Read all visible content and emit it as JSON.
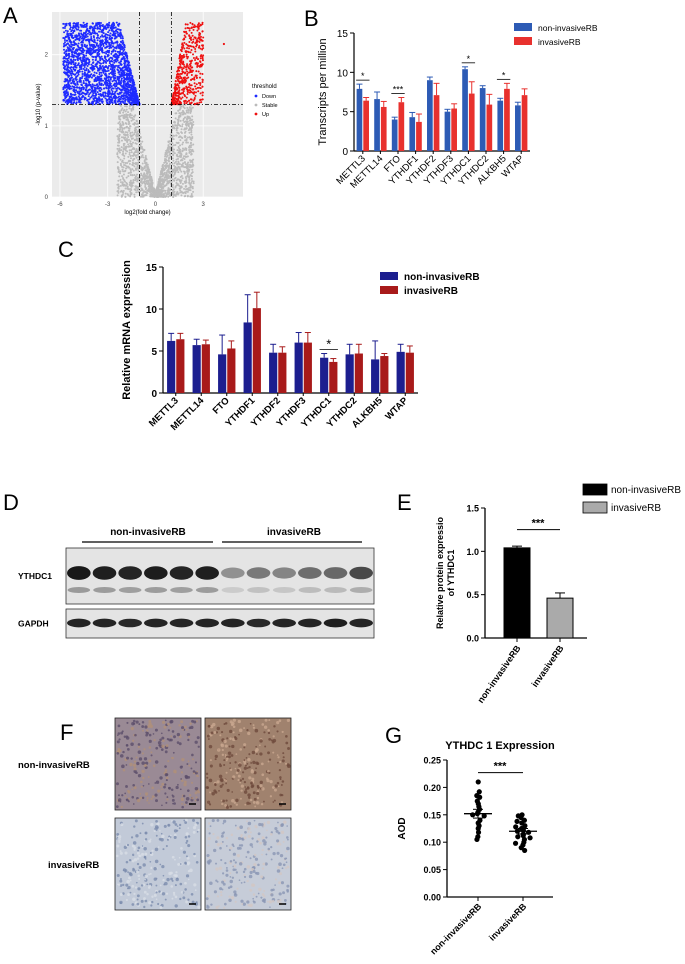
{
  "colors": {
    "blue": "#1f2bff",
    "red": "#ee1111",
    "grey": "#bbbbbb",
    "navy": "#1c1e8f",
    "darkred": "#a81a1a",
    "tpm_blue": "#2d5bb5",
    "tpm_red": "#e8312e",
    "black": "#000000",
    "lightgrey": "#aaaaaa"
  },
  "panels": {
    "A": "A",
    "B": "B",
    "C": "C",
    "D": "D",
    "E": "E",
    "F": "F",
    "G": "G"
  },
  "chart_data": [
    {
      "id": "A",
      "type": "scatter",
      "xlabel": "log2(fold change)",
      "ylabel": "-log10 (p-value)",
      "xticks": [
        -6,
        -3,
        0,
        3
      ],
      "yticks": [
        0,
        1,
        2
      ],
      "xlim": [
        -6.5,
        5.5
      ],
      "ylim": [
        0,
        2.6
      ],
      "thresholds": {
        "x": [
          -1,
          1
        ],
        "y": 1.3
      },
      "legend": {
        "title": "threshold",
        "items": [
          "Down",
          "Stable",
          "Up"
        ],
        "placement": "right"
      }
    },
    {
      "id": "B",
      "type": "bar",
      "ylabel": "Transcripts per million",
      "ylim": [
        0,
        15
      ],
      "yticks": [
        0,
        5,
        10,
        15
      ],
      "categories": [
        "METTL3",
        "METTL14",
        "FTO",
        "YTHDF1",
        "YTHDF2",
        "YTHDF3",
        "YTHDC1",
        "YTHDC2",
        "ALKBH5",
        "WTAP"
      ],
      "series": [
        {
          "name": "non-invasiveRB",
          "values": [
            7.9,
            6.6,
            4.0,
            4.3,
            9.0,
            5.0,
            10.4,
            8.0,
            6.4,
            5.8
          ],
          "err": [
            0.6,
            0.9,
            0.3,
            0.6,
            0.4,
            0.3,
            0.3,
            0.3,
            0.3,
            0.4
          ]
        },
        {
          "name": "invasiveRB",
          "values": [
            6.4,
            5.6,
            6.2,
            3.7,
            7.1,
            5.4,
            7.3,
            5.9,
            7.9,
            7.1
          ],
          "err": [
            0.4,
            0.7,
            0.6,
            1.0,
            1.5,
            0.6,
            1.5,
            1.3,
            0.7,
            0.8
          ]
        }
      ],
      "annotations": [
        {
          "category": "METTL3",
          "label": "*"
        },
        {
          "category": "FTO",
          "label": "***"
        },
        {
          "category": "YTHDC1",
          "label": "*"
        },
        {
          "category": "ALKBH5",
          "label": "*"
        }
      ]
    },
    {
      "id": "C",
      "type": "bar",
      "ylabel": "Relative mRNA expression",
      "ylim": [
        0,
        15
      ],
      "yticks": [
        0,
        5,
        10,
        15
      ],
      "categories": [
        "METTL3",
        "METTL14",
        "FTO",
        "YTHDF1",
        "YTHDF2",
        "YTHDF3",
        "YTHDC1",
        "YTHDC2",
        "ALKBH5",
        "WTAP"
      ],
      "series": [
        {
          "name": "non-invasiveRB",
          "values": [
            6.2,
            5.7,
            4.6,
            8.4,
            4.8,
            6.0,
            4.2,
            4.6,
            4.0,
            4.9
          ],
          "err": [
            0.9,
            0.7,
            2.3,
            3.3,
            1.0,
            1.2,
            0.5,
            1.2,
            2.2,
            0.9
          ]
        },
        {
          "name": "invasiveRB",
          "values": [
            6.4,
            5.8,
            5.3,
            10.1,
            4.8,
            6.0,
            3.7,
            4.7,
            4.4,
            4.8
          ],
          "err": [
            0.7,
            0.5,
            0.9,
            1.9,
            0.7,
            1.2,
            0.4,
            1.1,
            0.3,
            0.8
          ]
        }
      ],
      "annotations": [
        {
          "category": "YTHDC1",
          "label": "*"
        }
      ]
    },
    {
      "id": "E",
      "type": "bar",
      "ylabel": "Relative protein expressio\nof YTHDC1",
      "ylabel_lines": [
        "Relative protein expressio",
        "of YTHDC1"
      ],
      "ylim": [
        0,
        1.5
      ],
      "yticks": [
        "0.0",
        "0.5",
        "1.0",
        "1.5"
      ],
      "categories": [
        "non-invasiveRB",
        "invasiveRB"
      ],
      "values": [
        1.04,
        0.46
      ],
      "err": [
        0.02,
        0.06
      ],
      "legend": [
        "non-invasiveRB",
        "invasiveRB"
      ],
      "annotation": "***"
    },
    {
      "id": "G",
      "type": "scatter",
      "title": "YTHDC 1 Expression",
      "ylabel": "AOD",
      "ylim": [
        0,
        0.25
      ],
      "yticks": [
        "0.00",
        "0.05",
        "0.10",
        "0.15",
        "0.20",
        "0.25"
      ],
      "categories": [
        "non-invasiveRB",
        "invasiveRB"
      ],
      "groups": [
        {
          "name": "non-invasiveRB",
          "mean": 0.152,
          "sem": 0.008,
          "values": [
            0.21,
            0.192,
            0.185,
            0.182,
            0.175,
            0.17,
            0.165,
            0.16,
            0.155,
            0.152,
            0.15,
            0.148,
            0.14,
            0.135,
            0.13,
            0.125,
            0.118,
            0.11,
            0.105
          ]
        },
        {
          "name": "invasiveRB",
          "mean": 0.12,
          "sem": 0.005,
          "values": [
            0.15,
            0.148,
            0.145,
            0.14,
            0.138,
            0.135,
            0.13,
            0.128,
            0.125,
            0.122,
            0.12,
            0.118,
            0.115,
            0.112,
            0.11,
            0.108,
            0.105,
            0.1,
            0.098,
            0.095,
            0.09,
            0.085
          ]
        }
      ],
      "annotation": "***"
    }
  ],
  "blot": {
    "group_labels": [
      "non-invasiveRB",
      "invasiveRB"
    ],
    "row_labels": [
      "YTHDC1",
      "GAPDH"
    ],
    "lanes": 12,
    "ythdc1_intensity": [
      0.95,
      0.92,
      0.9,
      0.93,
      0.9,
      0.92,
      0.45,
      0.55,
      0.5,
      0.6,
      0.62,
      0.75
    ],
    "gapdh_intensity": [
      0.9,
      0.9,
      0.88,
      0.9,
      0.9,
      0.9,
      0.9,
      0.88,
      0.9,
      0.9,
      0.92,
      0.9
    ]
  },
  "ihc": {
    "row_labels": [
      "non-invasiveRB",
      "invasiveRB"
    ]
  }
}
